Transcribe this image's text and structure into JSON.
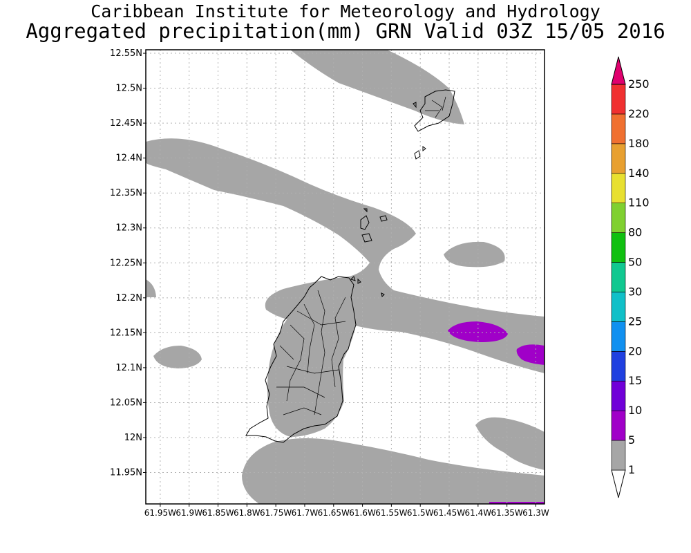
{
  "header": {
    "title": "Caribbean Institute for Meteorology and Hydrology",
    "subtitle": "Aggregated precipitation(mm) GRN Valid 03Z 15/05 2016"
  },
  "map": {
    "lat_labels": [
      "12.55N",
      "12.5N",
      "12.45N",
      "12.4N",
      "12.35N",
      "12.3N",
      "12.25N",
      "12.2N",
      "12.15N",
      "12.1N",
      "12.05N",
      "12N",
      "11.95N"
    ],
    "lon_labels": [
      "61.95W",
      "61.9W",
      "61.85W",
      "61.8W",
      "61.75W",
      "61.7W",
      "61.65W",
      "61.6W",
      "61.55W",
      "61.5W",
      "61.45W",
      "61.4W",
      "61.35W",
      "61.3W"
    ],
    "lat_range": [
      11.905,
      12.555
    ],
    "lon_range": [
      -61.975,
      -61.285
    ],
    "grid": true
  },
  "legend": {
    "levels": [
      "1",
      "5",
      "10",
      "15",
      "20",
      "25",
      "30",
      "50",
      "80",
      "110",
      "140",
      "180",
      "220",
      "250"
    ],
    "colors": [
      "#ffffff",
      "#a6a6a6",
      "#a000c8",
      "#7000d8",
      "#2040e0",
      "#1090f0",
      "#10c0c8",
      "#10c890",
      "#10c010",
      "#80d030",
      "#e8e030",
      "#e8a030",
      "#f07030",
      "#f03030",
      "#e0006e"
    ]
  },
  "colors": {
    "precip_1_5": "#a6a6a6",
    "precip_5_10": "#a000c8"
  }
}
